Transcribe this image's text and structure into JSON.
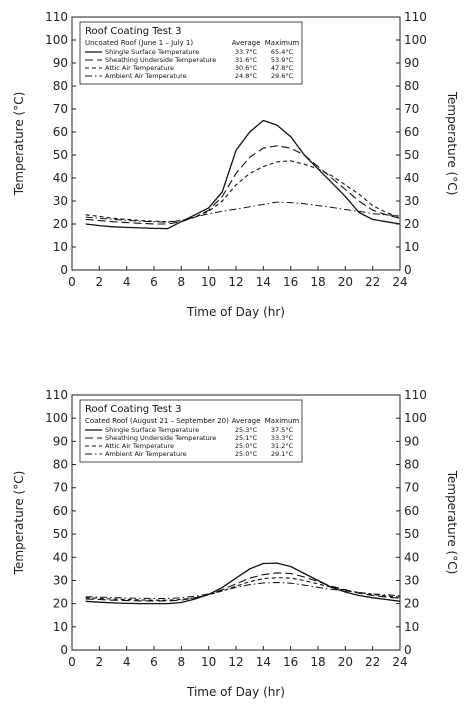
{
  "chart_data": [
    {
      "type": "line",
      "title": "Roof Coating Test 3",
      "subtitle": "Uncoated Roof (June 1 – July 1)",
      "stat_headers": [
        "Average",
        "Maximum"
      ],
      "xlabel": "Time of Day (hr)",
      "ylabel": "Temperature (°C)",
      "xlim": [
        0,
        24
      ],
      "ylim": [
        0,
        110
      ],
      "xticks": [
        "0",
        "2",
        "4",
        "6",
        "8",
        "10",
        "12",
        "14",
        "16",
        "18",
        "20",
        "22",
        "24"
      ],
      "yticks": [
        "0",
        "10",
        "20",
        "30",
        "40",
        "50",
        "60",
        "70",
        "80",
        "90",
        "100",
        "110"
      ],
      "y2ticks": [
        "0",
        "10",
        "20",
        "30",
        "40",
        "50",
        "60",
        "70",
        "80",
        "90",
        "100",
        "110"
      ],
      "grid": false,
      "legend_position": "top-left",
      "x": [
        1,
        2,
        3,
        4,
        5,
        6,
        7,
        8,
        9,
        10,
        11,
        12,
        13,
        14,
        15,
        16,
        17,
        18,
        19,
        20,
        21,
        22,
        23,
        24
      ],
      "series": [
        {
          "name": "Shingle Surface Temperature",
          "average": "33.7°C",
          "maximum": "65.4°C",
          "dash": "solid",
          "values": [
            20,
            19.3,
            18.8,
            18.5,
            18.3,
            18.1,
            18,
            21,
            24,
            27,
            34,
            52,
            60,
            65,
            63,
            58,
            50,
            44,
            38,
            32,
            25,
            22,
            21,
            20
          ]
        },
        {
          "name": "Sheathing Underside Temperature",
          "average": "31.6°C",
          "maximum": "53.9°C",
          "dash": "longdash",
          "values": [
            22,
            21.5,
            21,
            20.6,
            20.3,
            20,
            20,
            21,
            23,
            26,
            32,
            42,
            49,
            53,
            54,
            53,
            50,
            45,
            40,
            35,
            30,
            26,
            24,
            22.5
          ]
        },
        {
          "name": "Attic Air Temperature",
          "average": "30.6°C",
          "maximum": "47.8°C",
          "dash": "shortdash",
          "values": [
            24,
            23.3,
            22.5,
            22,
            21.5,
            21.2,
            21,
            21.5,
            23,
            25.5,
            30,
            37,
            42,
            45,
            47,
            47.5,
            46,
            44,
            41,
            37,
            33,
            28,
            25,
            23
          ]
        },
        {
          "name": "Ambient Air Temperature",
          "average": "24.8°C",
          "maximum": "29.6°C",
          "dash": "dashdot",
          "values": [
            23,
            22.5,
            22,
            21.6,
            21.2,
            21,
            20.8,
            21.5,
            23,
            24.5,
            25.5,
            26.5,
            27.5,
            28.5,
            29.5,
            29.3,
            28.8,
            28,
            27.2,
            26.3,
            25.5,
            24.5,
            24,
            23.5
          ]
        }
      ]
    },
    {
      "type": "line",
      "title": "Roof Coating Test 3",
      "subtitle": "Coated Roof (August 21 – September 20)",
      "stat_headers": [
        "Average",
        "Maximum"
      ],
      "xlabel": "Time of Day (hr)",
      "ylabel": "Temperature (°C)",
      "xlim": [
        0,
        24
      ],
      "ylim": [
        0,
        110
      ],
      "xticks": [
        "0",
        "2",
        "4",
        "6",
        "8",
        "10",
        "12",
        "14",
        "16",
        "18",
        "20",
        "22",
        "24"
      ],
      "yticks": [
        "0",
        "10",
        "20",
        "30",
        "40",
        "50",
        "60",
        "70",
        "80",
        "90",
        "100",
        "110"
      ],
      "y2ticks": [
        "0",
        "10",
        "20",
        "30",
        "40",
        "50",
        "60",
        "70",
        "80",
        "90",
        "100",
        "110"
      ],
      "grid": false,
      "legend_position": "top-left",
      "x": [
        1,
        2,
        3,
        4,
        5,
        6,
        7,
        8,
        9,
        10,
        11,
        12,
        13,
        14,
        15,
        16,
        17,
        18,
        19,
        20,
        21,
        22,
        23,
        24
      ],
      "series": [
        {
          "name": "Shingle Surface Temperature",
          "average": "25.3°C",
          "maximum": "37.5°C",
          "dash": "solid",
          "values": [
            21,
            20.6,
            20.3,
            20.1,
            20,
            20,
            20,
            20.5,
            22,
            24,
            27,
            31,
            35,
            37.3,
            37.5,
            36,
            33,
            30,
            27,
            25,
            23.5,
            22.5,
            21.8,
            21
          ]
        },
        {
          "name": "Sheathing Underside Temperature",
          "average": "25.1°C",
          "maximum": "33.3°C",
          "dash": "longdash",
          "values": [
            22,
            21.8,
            21.5,
            21.3,
            21.2,
            21.2,
            21.2,
            21.5,
            22.5,
            24,
            26,
            28.5,
            31,
            32.5,
            33.3,
            33,
            31.5,
            29.5,
            27.5,
            26,
            24.5,
            23.5,
            22.8,
            22.3
          ]
        },
        {
          "name": "Attic Air Temperature",
          "average": "25.0°C",
          "maximum": "31.2°C",
          "dash": "shortdash",
          "values": [
            22.5,
            22.3,
            22,
            21.8,
            21.6,
            21.5,
            21.5,
            21.8,
            22.5,
            23.8,
            25.5,
            27.5,
            29.5,
            30.8,
            31.2,
            31,
            30,
            28.5,
            27,
            25.8,
            24.8,
            24,
            23.3,
            22.8
          ]
        },
        {
          "name": "Ambient Air Temperature",
          "average": "25.0°C",
          "maximum": "29.1°C",
          "dash": "dashdot",
          "values": [
            23,
            22.8,
            22.6,
            22.4,
            22.3,
            22.2,
            22.2,
            22.5,
            23.2,
            24.2,
            25.5,
            27,
            28.2,
            28.9,
            29.1,
            28.8,
            28,
            27,
            26.2,
            25.5,
            24.8,
            24.2,
            23.8,
            23.4
          ]
        }
      ]
    }
  ]
}
